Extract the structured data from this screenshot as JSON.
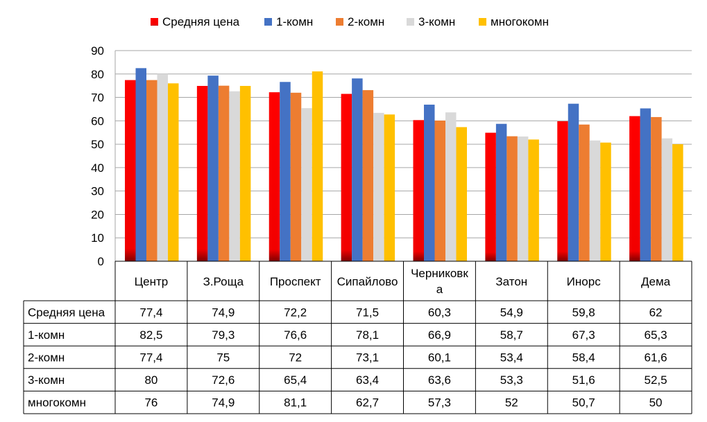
{
  "chart_data": {
    "type": "bar",
    "title": "",
    "xlabel": "",
    "ylabel": "",
    "ylim": [
      0,
      90
    ],
    "yticks": [
      0,
      10,
      20,
      30,
      40,
      50,
      60,
      70,
      80,
      90
    ],
    "grid": true,
    "legend_position": "top",
    "categories": [
      "Центр",
      "З.Роща",
      "Проспект",
      "Сипайлово",
      "Черниковка",
      "Затон",
      "Инорс",
      "Дема"
    ],
    "category_lines": [
      [
        "Центр"
      ],
      [
        "З.Роща"
      ],
      [
        "Проспект"
      ],
      [
        "Сипайлово"
      ],
      [
        "Черниковк",
        "а"
      ],
      [
        "Затон"
      ],
      [
        "Инорс"
      ],
      [
        "Дема"
      ]
    ],
    "series": [
      {
        "name": "Средняя цена",
        "color": "#ff0000",
        "shade": "#7f0000",
        "gradient": true,
        "values": [
          77.4,
          74.9,
          72.2,
          71.5,
          60.3,
          54.9,
          59.8,
          62
        ],
        "labels": [
          "77,4",
          "74,9",
          "72,2",
          "71,5",
          "60,3",
          "54,9",
          "59,8",
          "62"
        ]
      },
      {
        "name": "1-комн",
        "color": "#4472c4",
        "values": [
          82.5,
          79.3,
          76.6,
          78.1,
          66.9,
          58.7,
          67.3,
          65.3
        ],
        "labels": [
          "82,5",
          "79,3",
          "76,6",
          "78,1",
          "66,9",
          "58,7",
          "67,3",
          "65,3"
        ]
      },
      {
        "name": "2-комн",
        "color": "#ed7d31",
        "values": [
          77.4,
          75,
          72,
          73.1,
          60.1,
          53.4,
          58.4,
          61.6
        ],
        "labels": [
          "77,4",
          "75",
          "72",
          "73,1",
          "60,1",
          "53,4",
          "58,4",
          "61,6"
        ]
      },
      {
        "name": "3-комн",
        "color": "#d9d9d9",
        "values": [
          80,
          72.6,
          65.4,
          63.4,
          63.6,
          53.3,
          51.6,
          52.5
        ],
        "labels": [
          "80",
          "72,6",
          "65,4",
          "63,4",
          "63,6",
          "53,3",
          "51,6",
          "52,5"
        ]
      },
      {
        "name": "многокомн",
        "color": "#ffc000",
        "values": [
          76,
          74.9,
          81.1,
          62.7,
          57.3,
          52,
          50.7,
          50
        ],
        "labels": [
          "76",
          "74,9",
          "81,1",
          "62,7",
          "57,3",
          "52",
          "50,7",
          "50"
        ]
      }
    ]
  }
}
